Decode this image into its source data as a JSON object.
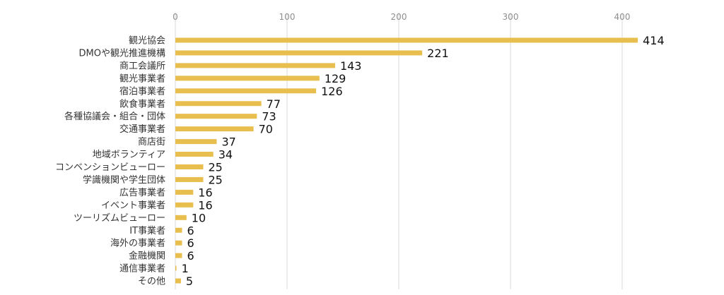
{
  "chart_data": {
    "type": "bar",
    "orientation": "horizontal",
    "categories": [
      "観光協会",
      "DMOや観光推進機構",
      "商工会議所",
      "観光事業者",
      "宿泊事業者",
      "飲食事業者",
      "各種協議会・組合・団体",
      "交通事業者",
      "商店街",
      "地域ボランティア",
      "コンベンションビューロー",
      "学識機関や学生団体",
      "広告事業者",
      "イベント事業者",
      "ツーリズムビューロー",
      "IT事業者",
      "海外の事業者",
      "金融機関",
      "通信事業者",
      "その他"
    ],
    "values": [
      414,
      221,
      143,
      129,
      126,
      77,
      73,
      70,
      37,
      34,
      25,
      25,
      16,
      16,
      10,
      6,
      6,
      6,
      1,
      5
    ],
    "xlim": [
      0,
      420
    ],
    "xticks": [
      0,
      100,
      200,
      300,
      400
    ],
    "axis_position": "top",
    "grid": true,
    "legend": "none",
    "bar_color": "#e8bf4e",
    "title": "",
    "xlabel": "",
    "ylabel": ""
  }
}
